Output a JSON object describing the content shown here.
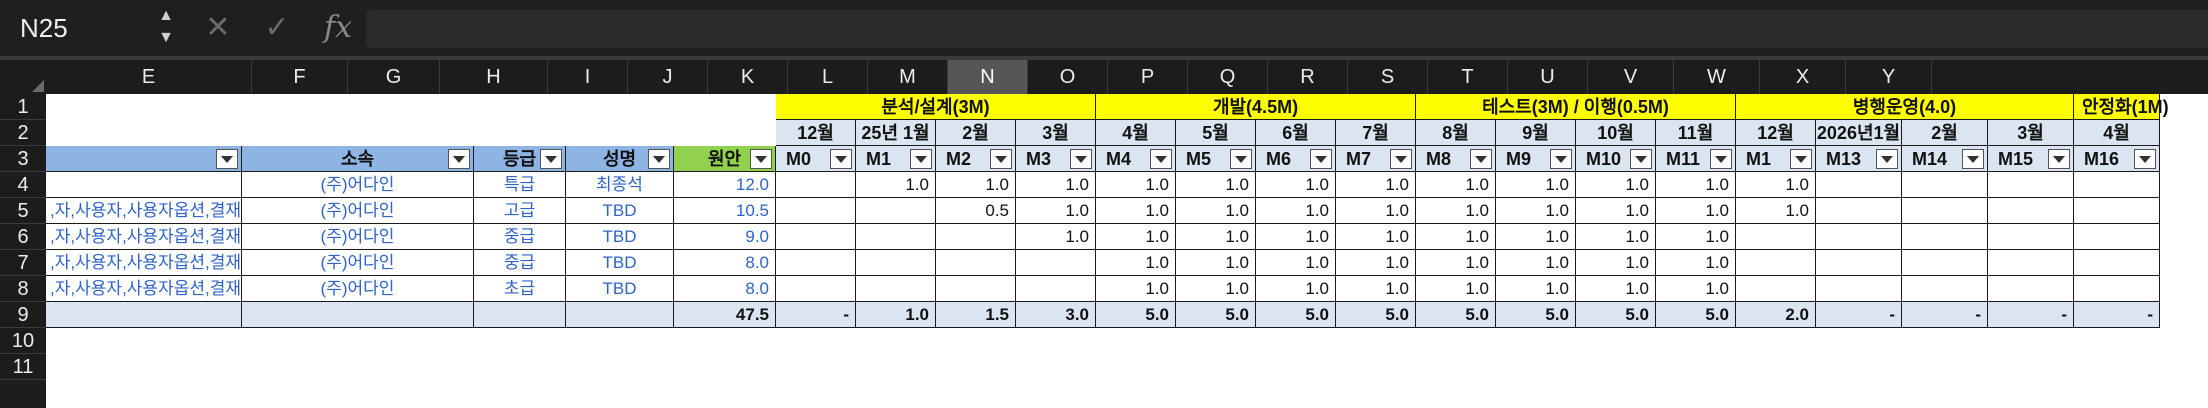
{
  "formula_bar": {
    "cell_ref": "N25",
    "spinner_up": "▲",
    "spinner_down": "▼",
    "cancel": "✕",
    "confirm": "✓",
    "fx": "fx",
    "formula": ""
  },
  "columns": [
    "E",
    "F",
    "G",
    "H",
    "I",
    "J",
    "K",
    "L",
    "M",
    "N",
    "O",
    "P",
    "Q",
    "R",
    "S",
    "T",
    "U",
    "V",
    "W",
    "X",
    "Y"
  ],
  "selected_column": "N",
  "rows": [
    "1",
    "2",
    "3",
    "4",
    "5",
    "6",
    "7",
    "8",
    "9",
    "10",
    "11"
  ],
  "phases": [
    "분석/설계(3M)",
    "개발(4.5M)",
    "테스트(3M) / 이행(0.5M)",
    "병행운영(4.0)",
    "안정화(1M)"
  ],
  "months": [
    "12월",
    "25년 1월",
    "2월",
    "3월",
    "4월",
    "5월",
    "6월",
    "7월",
    "8월",
    "9월",
    "10월",
    "11월",
    "12월",
    "2026년1월",
    "2월",
    "3월",
    "4월"
  ],
  "header3": {
    "affiliation": "소속",
    "grade": "등급",
    "name": "성명",
    "base": "원안",
    "codes": [
      "M0",
      "M1",
      "M2",
      "M3",
      "M4",
      "M5",
      "M6",
      "M7",
      "M8",
      "M9",
      "M10",
      "M11",
      "M1",
      "M13",
      "M14",
      "M15",
      "M16"
    ]
  },
  "data_rows": [
    {
      "task": "",
      "affiliation": "(주)어다인",
      "grade": "특급",
      "name": "최종석",
      "base": "12.0",
      "vals": [
        "",
        "1.0",
        "1.0",
        "1.0",
        "1.0",
        "1.0",
        "1.0",
        "1.0",
        "1.0",
        "1.0",
        "1.0",
        "1.0",
        "1.0",
        "",
        "",
        "",
        ""
      ]
    },
    {
      "task": "자,사용자,사용자옵션,결재,",
      "affiliation": "(주)어다인",
      "grade": "고급",
      "name": "TBD",
      "base": "10.5",
      "vals": [
        "",
        "",
        "0.5",
        "1.0",
        "1.0",
        "1.0",
        "1.0",
        "1.0",
        "1.0",
        "1.0",
        "1.0",
        "1.0",
        "1.0",
        "",
        "",
        "",
        ""
      ]
    },
    {
      "task": "자,사용자,사용자옵션,결재,",
      "affiliation": "(주)어다인",
      "grade": "중급",
      "name": "TBD",
      "base": "9.0",
      "vals": [
        "",
        "",
        "",
        "1.0",
        "1.0",
        "1.0",
        "1.0",
        "1.0",
        "1.0",
        "1.0",
        "1.0",
        "1.0",
        "",
        "",
        "",
        "",
        ""
      ]
    },
    {
      "task": "자,사용자,사용자옵션,결재,",
      "affiliation": "(주)어다인",
      "grade": "중급",
      "name": "TBD",
      "base": "8.0",
      "vals": [
        "",
        "",
        "",
        "",
        "1.0",
        "1.0",
        "1.0",
        "1.0",
        "1.0",
        "1.0",
        "1.0",
        "1.0",
        "",
        "",
        "",
        "",
        ""
      ]
    },
    {
      "task": "자,사용자,사용자옵션,결재,",
      "affiliation": "(주)어다인",
      "grade": "초급",
      "name": "TBD",
      "base": "8.0",
      "vals": [
        "",
        "",
        "",
        "",
        "1.0",
        "1.0",
        "1.0",
        "1.0",
        "1.0",
        "1.0",
        "1.0",
        "1.0",
        "",
        "",
        "",
        "",
        ""
      ]
    }
  ],
  "totals": {
    "base": "47.5",
    "vals": [
      "-",
      "1.0",
      "1.5",
      "3.0",
      "5.0",
      "5.0",
      "5.0",
      "5.0",
      "5.0",
      "5.0",
      "5.0",
      "5.0",
      "2.0",
      "-",
      "-",
      "-",
      "-"
    ]
  }
}
